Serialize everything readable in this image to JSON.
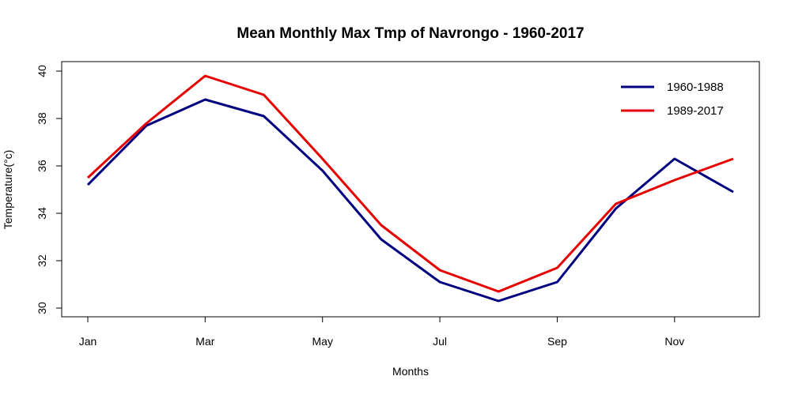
{
  "chart_data": {
    "type": "line",
    "title": "Mean Monthly Max Tmp of Navrongo - 1960-2017",
    "xlabel": "Months",
    "ylabel": "Temperature(°c)",
    "x": [
      1,
      2,
      3,
      4,
      5,
      6,
      7,
      8,
      9,
      10,
      11,
      12
    ],
    "x_tick_values": [
      1,
      3,
      5,
      7,
      9,
      11
    ],
    "x_tick_labels": [
      "Jan",
      "Mar",
      "May",
      "Jul",
      "Sep",
      "Nov"
    ],
    "xlim": [
      1,
      12
    ],
    "ylim": [
      30,
      40
    ],
    "y_ticks": [
      30,
      32,
      34,
      36,
      38,
      40
    ],
    "grid": false,
    "legend_position": "top-right",
    "series": [
      {
        "name": "1960-1988",
        "color": "#000080",
        "values": [
          35.2,
          37.7,
          38.8,
          38.1,
          35.8,
          32.9,
          31.1,
          30.3,
          31.1,
          34.2,
          36.3,
          34.9
        ]
      },
      {
        "name": "1989-2017",
        "color": "#e60000",
        "values": [
          35.5,
          37.8,
          39.8,
          39.0,
          36.3,
          33.5,
          31.6,
          30.7,
          31.7,
          34.4,
          35.4,
          36.3
        ]
      }
    ]
  }
}
